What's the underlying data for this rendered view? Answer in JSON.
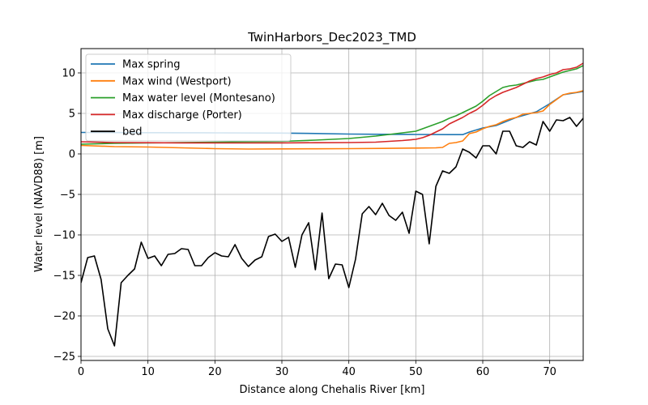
{
  "chart_data": {
    "type": "line",
    "title": "TwinHarbors_Dec2023_TMD",
    "xlabel": "Distance along Chehalis River [km]",
    "ylabel": "Water level (NAVD88) [m]",
    "xlim": [
      0,
      75
    ],
    "ylim": [
      -25.5,
      13
    ],
    "xticks": [
      0,
      10,
      20,
      30,
      40,
      50,
      60,
      70
    ],
    "yticks": [
      -25,
      -20,
      -15,
      -10,
      -5,
      0,
      5,
      10
    ],
    "grid": true,
    "legend_position": "top-left",
    "series": [
      {
        "name": "Max spring",
        "color": "#1f77b4",
        "x": [
          0,
          10,
          20,
          30,
          35,
          40,
          45,
          50,
          55,
          57,
          58,
          60,
          62,
          65,
          68,
          70,
          72,
          75
        ],
        "y": [
          2.65,
          2.62,
          2.6,
          2.57,
          2.52,
          2.45,
          2.42,
          2.4,
          2.38,
          2.38,
          2.7,
          3.2,
          3.5,
          4.5,
          5.2,
          6.2,
          7.3,
          7.7
        ]
      },
      {
        "name": "Max wind (Westport)",
        "color": "#ff7f0e",
        "x": [
          0,
          5,
          10,
          15,
          20,
          25,
          30,
          35,
          40,
          45,
          50,
          53,
          54,
          55,
          56,
          57,
          58,
          59,
          60,
          61,
          62,
          63,
          64,
          65,
          66,
          67,
          68,
          69,
          70,
          71,
          72,
          73,
          74,
          75
        ],
        "y": [
          1.05,
          0.9,
          0.85,
          0.75,
          0.65,
          0.6,
          0.62,
          0.63,
          0.65,
          0.68,
          0.72,
          0.75,
          0.8,
          1.3,
          1.4,
          1.6,
          2.5,
          2.7,
          3.1,
          3.4,
          3.6,
          4.0,
          4.3,
          4.5,
          4.9,
          5.0,
          5.1,
          5.3,
          6.1,
          6.7,
          7.3,
          7.5,
          7.6,
          7.8
        ]
      },
      {
        "name": "Max water level (Montesano)",
        "color": "#2ca02c",
        "x": [
          0,
          5,
          10,
          15,
          20,
          25,
          30,
          35,
          40,
          44,
          46,
          48,
          50,
          51,
          52,
          53,
          54,
          55,
          56,
          57,
          58,
          59,
          60,
          61,
          62,
          63,
          64,
          65,
          66,
          67,
          68,
          69,
          70,
          71,
          72,
          73,
          74,
          75
        ],
        "y": [
          1.2,
          1.3,
          1.35,
          1.4,
          1.45,
          1.5,
          1.55,
          1.7,
          1.9,
          2.2,
          2.4,
          2.6,
          2.8,
          3.1,
          3.4,
          3.7,
          4.0,
          4.4,
          4.7,
          5.1,
          5.5,
          5.9,
          6.5,
          7.2,
          7.7,
          8.2,
          8.4,
          8.5,
          8.7,
          8.9,
          9.1,
          9.2,
          9.5,
          9.8,
          10.1,
          10.3,
          10.5,
          10.9
        ]
      },
      {
        "name": "Max discharge (Porter)",
        "color": "#d62728",
        "x": [
          0,
          5,
          10,
          15,
          20,
          25,
          30,
          35,
          40,
          44,
          46,
          48,
          50,
          51,
          52,
          53,
          54,
          55,
          56,
          57,
          58,
          59,
          60,
          61,
          62,
          63,
          64,
          65,
          66,
          67,
          68,
          69,
          70,
          71,
          72,
          73,
          74,
          75
        ],
        "y": [
          1.5,
          1.4,
          1.38,
          1.36,
          1.35,
          1.35,
          1.36,
          1.38,
          1.4,
          1.45,
          1.55,
          1.65,
          1.8,
          2.0,
          2.3,
          2.7,
          3.1,
          3.7,
          4.1,
          4.5,
          5.0,
          5.4,
          6.0,
          6.7,
          7.2,
          7.6,
          7.9,
          8.2,
          8.6,
          9.0,
          9.3,
          9.5,
          9.8,
          10.0,
          10.4,
          10.5,
          10.7,
          11.2
        ]
      },
      {
        "name": "bed",
        "color": "#000000",
        "x": [
          0,
          1,
          2,
          3,
          4,
          5,
          6,
          7,
          8,
          9,
          10,
          11,
          12,
          13,
          14,
          15,
          16,
          17,
          18,
          19,
          20,
          21,
          22,
          23,
          24,
          25,
          26,
          27,
          28,
          29,
          30,
          31,
          32,
          33,
          34,
          35,
          36,
          37,
          38,
          39,
          40,
          41,
          42,
          43,
          44,
          45,
          46,
          47,
          48,
          49,
          50,
          51,
          52,
          53,
          54,
          55,
          56,
          57,
          58,
          59,
          60,
          61,
          62,
          63,
          64,
          65,
          66,
          67,
          68,
          69,
          70,
          71,
          72,
          73,
          74,
          75
        ],
        "y": [
          -15.9,
          -12.8,
          -12.6,
          -15.5,
          -21.6,
          -23.7,
          -15.9,
          -15.0,
          -14.2,
          -10.9,
          -12.9,
          -12.6,
          -13.8,
          -12.4,
          -12.3,
          -11.7,
          -11.8,
          -13.8,
          -13.8,
          -12.8,
          -12.2,
          -12.6,
          -12.7,
          -11.2,
          -12.9,
          -13.9,
          -13.1,
          -12.7,
          -10.2,
          -9.9,
          -10.8,
          -10.3,
          -14.0,
          -10.0,
          -8.5,
          -14.3,
          -7.3,
          -15.4,
          -13.6,
          -13.7,
          -16.5,
          -13.0,
          -7.4,
          -6.5,
          -7.5,
          -6.1,
          -7.6,
          -8.2,
          -7.2,
          -9.8,
          -4.6,
          -5.0,
          -11.1,
          -4.0,
          -2.1,
          -2.4,
          -1.6,
          0.6,
          0.2,
          -0.5,
          1.0,
          1.0,
          0.0,
          2.8,
          2.8,
          1.0,
          0.8,
          1.5,
          1.1,
          4.0,
          2.8,
          4.2,
          4.1,
          4.5,
          3.4,
          4.4
        ]
      }
    ]
  }
}
